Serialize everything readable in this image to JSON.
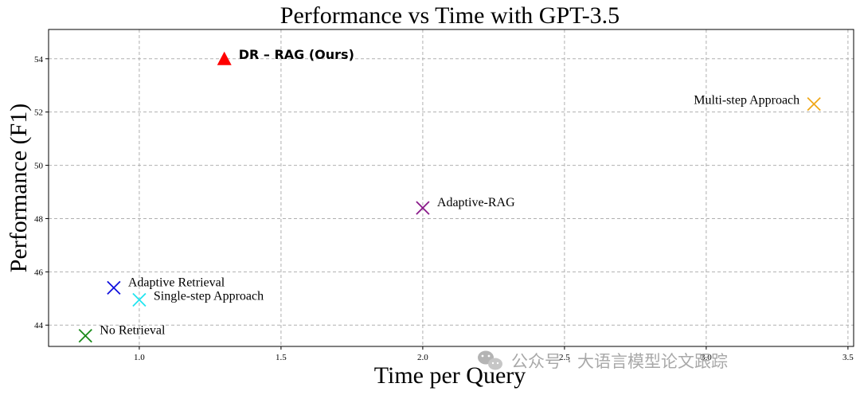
{
  "chart_data": {
    "type": "scatter",
    "title": "Performance vs Time with GPT-3.5",
    "xlabel": "Time per Query",
    "ylabel": "Performance (F1)",
    "xlim": [
      0.68,
      3.52
    ],
    "ylim": [
      43.2,
      55.1
    ],
    "xticks": [
      "1.0",
      "1.5",
      "2.0",
      "2.5",
      "3.0",
      "3.5"
    ],
    "xtick_values": [
      1.0,
      1.5,
      2.0,
      2.5,
      3.0,
      3.5
    ],
    "yticks": [
      "44",
      "46",
      "48",
      "50",
      "52",
      "54"
    ],
    "ytick_values": [
      44,
      46,
      48,
      50,
      52,
      54
    ],
    "grid": true,
    "points": [
      {
        "label": "No Retrieval",
        "x": 0.81,
        "y": 43.6,
        "marker": "x",
        "color": "#1a8a1a",
        "bold": false
      },
      {
        "label": "Adaptive Retrieval",
        "x": 0.91,
        "y": 45.4,
        "marker": "x",
        "color": "#1010dd",
        "bold": false
      },
      {
        "label": "Single-step Approach",
        "x": 1.0,
        "y": 44.95,
        "marker": "x",
        "color": "#22e5f0",
        "bold": false
      },
      {
        "label": "Adaptive-RAG",
        "x": 2.0,
        "y": 48.4,
        "marker": "x",
        "color": "#8a1a8a",
        "bold": false
      },
      {
        "label": "Multi-step Approach",
        "x": 3.38,
        "y": 52.3,
        "marker": "x",
        "color": "#f0a81a",
        "bold": false
      },
      {
        "label": "DR – RAG (Ours)",
        "x": 1.3,
        "y": 54.0,
        "marker": "triangle",
        "color": "#ff0000",
        "bold": true
      }
    ]
  },
  "watermark": {
    "icon": "wechat-icon",
    "text": "公众号 · 大语言模型论文跟踪"
  }
}
